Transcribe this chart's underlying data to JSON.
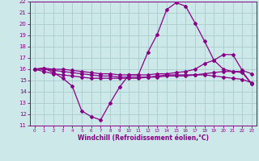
{
  "xlabel": "Windchill (Refroidissement éolien,°C)",
  "bg_color": "#cce8e8",
  "line_color": "#880088",
  "grid_color": "#aacccc",
  "xlim": [
    -0.5,
    23.5
  ],
  "ylim": [
    11,
    22
  ],
  "xticks": [
    0,
    1,
    2,
    3,
    4,
    5,
    6,
    7,
    8,
    9,
    10,
    11,
    12,
    13,
    14,
    15,
    16,
    17,
    18,
    19,
    20,
    21,
    22,
    23
  ],
  "yticks": [
    11,
    12,
    13,
    14,
    15,
    16,
    17,
    18,
    19,
    20,
    21,
    22
  ],
  "line1_x": [
    0,
    1,
    2,
    3,
    4,
    5,
    6,
    7,
    8,
    9,
    10,
    11,
    12,
    13,
    14,
    15,
    16,
    17,
    18,
    19,
    20,
    21,
    22,
    23
  ],
  "line1_y": [
    16.0,
    16.1,
    15.7,
    15.2,
    14.5,
    12.3,
    11.8,
    11.5,
    13.0,
    14.4,
    15.5,
    15.5,
    17.5,
    19.1,
    21.3,
    21.9,
    21.6,
    20.1,
    18.5,
    16.8,
    16.0,
    15.8,
    15.8,
    14.7
  ],
  "line2_x": [
    0,
    1,
    2,
    3,
    4,
    5,
    6,
    7,
    8,
    9,
    10,
    11,
    12,
    13,
    14,
    15,
    16,
    17,
    18,
    19,
    20,
    21,
    22,
    23
  ],
  "line2_y": [
    16.0,
    15.8,
    15.6,
    15.5,
    15.4,
    15.3,
    15.2,
    15.2,
    15.2,
    15.2,
    15.2,
    15.2,
    15.3,
    15.4,
    15.5,
    15.5,
    15.5,
    15.5,
    15.5,
    15.4,
    15.3,
    15.2,
    15.1,
    14.8
  ],
  "line3_x": [
    0,
    1,
    2,
    3,
    4,
    5,
    6,
    7,
    8,
    9,
    10,
    11,
    12,
    13,
    14,
    15,
    16,
    17,
    18,
    19,
    20,
    21,
    22,
    23
  ],
  "line3_y": [
    16.0,
    16.1,
    16.0,
    16.0,
    15.9,
    15.8,
    15.7,
    15.6,
    15.6,
    15.5,
    15.5,
    15.5,
    15.5,
    15.6,
    15.6,
    15.7,
    15.8,
    16.0,
    16.5,
    16.8,
    17.3,
    17.3,
    15.9,
    15.6
  ],
  "line4_x": [
    0,
    1,
    2,
    3,
    4,
    5,
    6,
    7,
    8,
    9,
    10,
    11,
    12,
    13,
    14,
    15,
    16,
    17,
    18,
    19,
    20,
    21,
    22,
    23
  ],
  "line4_y": [
    16.0,
    16.0,
    15.9,
    15.8,
    15.7,
    15.6,
    15.5,
    15.4,
    15.4,
    15.3,
    15.3,
    15.3,
    15.3,
    15.3,
    15.4,
    15.4,
    15.4,
    15.5,
    15.6,
    15.7,
    15.8,
    15.8,
    15.7,
    14.7
  ]
}
